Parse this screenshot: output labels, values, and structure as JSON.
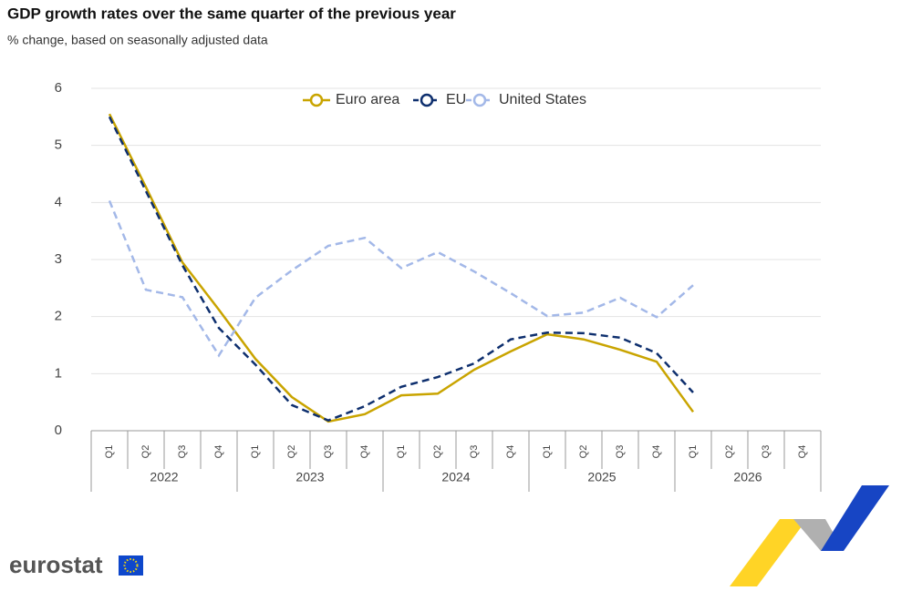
{
  "brand": "eurostat",
  "chart_data": {
    "type": "line",
    "title": "GDP growth rates over the same quarter of the previous year",
    "subtitle": "% change, based on seasonally adjusted data",
    "categories": [
      "Q1",
      "Q2",
      "Q3",
      "Q4",
      "Q1",
      "Q2",
      "Q3",
      "Q4",
      "Q1",
      "Q2",
      "Q3",
      "Q4",
      "Q1",
      "Q2",
      "Q3",
      "Q4",
      "Q1",
      "Q2",
      "Q3",
      "Q4"
    ],
    "years": [
      "2022",
      "2023",
      "2024",
      "2025",
      "2026"
    ],
    "series": [
      {
        "name": "Euro area",
        "color": "#c9a400",
        "dashed": false,
        "values": [
          5.55,
          4.27,
          2.95,
          2.12,
          1.26,
          0.59,
          0.16,
          0.29,
          0.62,
          0.65,
          1.07,
          1.39,
          1.69,
          1.6,
          1.42,
          1.21,
          0.33,
          null,
          null,
          null
        ]
      },
      {
        "name": "EU",
        "color": "#0e2f6e",
        "dashed": true,
        "values": [
          5.5,
          4.2,
          2.9,
          1.8,
          1.16,
          0.45,
          0.18,
          0.43,
          0.77,
          0.94,
          1.18,
          1.6,
          1.72,
          1.71,
          1.63,
          1.36,
          0.67,
          null,
          null,
          null
        ]
      },
      {
        "name": "United States",
        "color": "#a3b8e8",
        "dashed": true,
        "values": [
          4.03,
          2.47,
          2.34,
          1.32,
          2.33,
          2.81,
          3.24,
          3.38,
          2.85,
          3.13,
          2.79,
          2.41,
          2.01,
          2.07,
          2.33,
          1.99,
          2.55,
          null,
          null,
          null
        ]
      }
    ],
    "ylim": [
      0,
      6
    ],
    "yticks": [
      0,
      1,
      2,
      3,
      4,
      5,
      6
    ],
    "grid": true,
    "legend": "top"
  }
}
